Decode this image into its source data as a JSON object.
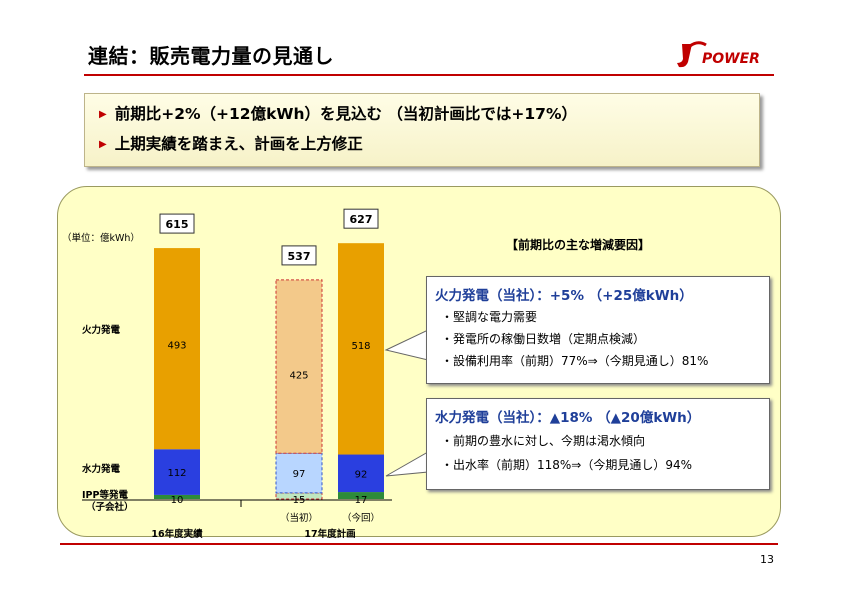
{
  "header": {
    "title": "連結：販売電力量の見通し",
    "logo_text": "POWER"
  },
  "bullets": [
    "前期比+2%（+12億kWh）を見込む （当初計画比では+17%）",
    "上期実績を踏まえ、計画を上方修正"
  ],
  "chart_data": {
    "type": "bar",
    "stacked": true,
    "unit_label": "（単位：億kWh）",
    "categories": [
      "16年度実績",
      "17年度計画（当初）",
      "17年度計画（今回）"
    ],
    "group_labels": [
      "16年度実績",
      "17年度計画"
    ],
    "sub_labels": [
      "",
      "（当初）",
      "（今回）"
    ],
    "series": [
      {
        "name": "IPP等発電（子会社）",
        "values": [
          10,
          15,
          17
        ],
        "color": "#2e8b3a"
      },
      {
        "name": "水力発電",
        "values": [
          112,
          97,
          92
        ],
        "color": "#2a3fe0"
      },
      {
        "name": "火力発電",
        "values": [
          493,
          425,
          518
        ],
        "color": "#e8a000"
      }
    ],
    "totals": [
      615,
      537,
      627
    ],
    "series_labels": [
      "IPP等発電",
      "（子会社）",
      "水力発電",
      "火力発電"
    ],
    "colors": {
      "thermal": "#e8a000",
      "hydro": "#2a3fe0",
      "ipp": "#2e8b3a",
      "plan_thermal": "#f3c98a",
      "plan_hydro": "#b8d6ff"
    }
  },
  "factors": {
    "title": "【前期比の主な増減要因】",
    "thermal": {
      "head": "火力発電（当社）：+5% （+25億kWh）",
      "lines": [
        "・堅調な電力需要",
        "・発電所の稼働日数増（定期点検減）",
        "・設備利用率（前期）77%⇒（今期見通し）81%"
      ]
    },
    "hydro": {
      "head": "水力発電（当社）：▲18% （▲20億kWh）",
      "lines": [
        "・前期の豊水に対し、今期は渇水傾向",
        "・出水率（前期）118%⇒（今期見通し）94%"
      ]
    }
  },
  "footer": {
    "page_number": "13"
  }
}
